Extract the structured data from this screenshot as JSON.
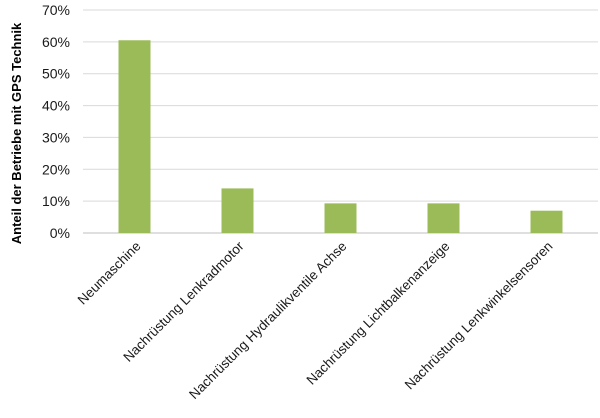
{
  "chart_data": {
    "type": "bar",
    "categories": [
      "Neumaschine",
      "Nachrüstung Lenkradmotor",
      "Nachrüstung Hydraulikventile Achse",
      "Nachrüstung Lichtbalkenanzeige",
      "Nachrüstung Lenkwinkelsensoren"
    ],
    "values": [
      0.605,
      0.14,
      0.093,
      0.093,
      0.07
    ],
    "title": "",
    "xlabel": "",
    "ylabel": "Anteil der Betriebe mit GPS Technik",
    "ylim": [
      0,
      0.7
    ],
    "yticks": [
      0,
      0.1,
      0.2,
      0.3,
      0.4,
      0.5,
      0.6,
      0.7
    ],
    "ytick_labels": [
      "0%",
      "10%",
      "20%",
      "30%",
      "40%",
      "50%",
      "60%",
      "70%"
    ],
    "grid": true,
    "legend": "none",
    "colors": {
      "bar": "#9bbb59",
      "grid": "#d9d9d9",
      "axis": "#bfbfbf",
      "text": "#1a1a1a"
    }
  }
}
